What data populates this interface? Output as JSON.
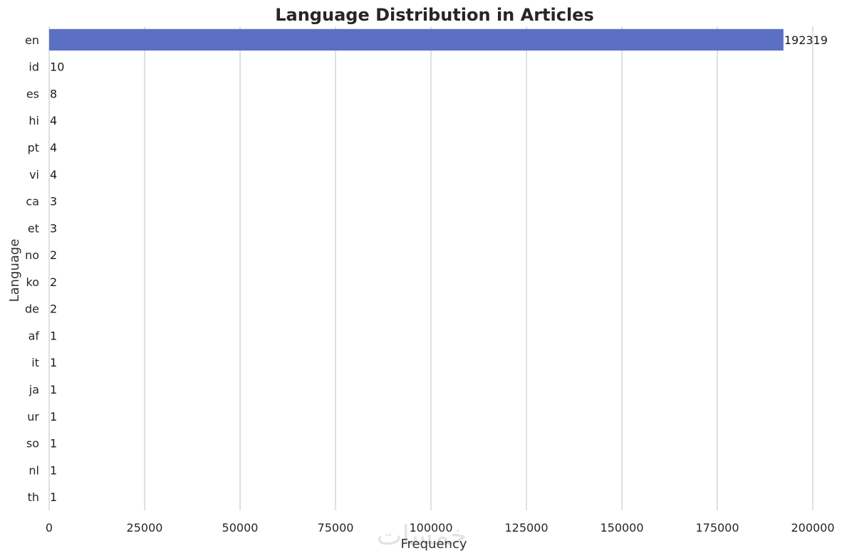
{
  "chart_data": {
    "type": "bar",
    "orientation": "horizontal",
    "title": "Language Distribution in Articles",
    "xlabel": "Frequency",
    "ylabel": "Language",
    "categories": [
      "en",
      "id",
      "es",
      "hi",
      "pt",
      "vi",
      "ca",
      "et",
      "no",
      "ko",
      "de",
      "af",
      "it",
      "ja",
      "ur",
      "so",
      "nl",
      "th"
    ],
    "values": [
      192319,
      10,
      8,
      4,
      4,
      4,
      3,
      3,
      2,
      2,
      2,
      1,
      1,
      1,
      1,
      1,
      1,
      1
    ],
    "data_labels": [
      "192319",
      "10",
      "8",
      "4",
      "4",
      "4",
      "3",
      "3",
      "2",
      "2",
      "2",
      "1",
      "1",
      "1",
      "1",
      "1",
      "1",
      "1"
    ],
    "xlim": [
      0,
      200000
    ],
    "xticks": [
      0,
      25000,
      50000,
      75000,
      100000,
      125000,
      150000,
      175000,
      200000
    ],
    "xtick_labels": [
      "0",
      "25000",
      "50000",
      "75000",
      "100000",
      "125000",
      "150000",
      "175000",
      "200000"
    ],
    "grid": "vertical",
    "bar_color": "#5b6fc4",
    "grid_color": "#d0d0d0"
  },
  "watermark": {
    "text": "خمسات"
  }
}
